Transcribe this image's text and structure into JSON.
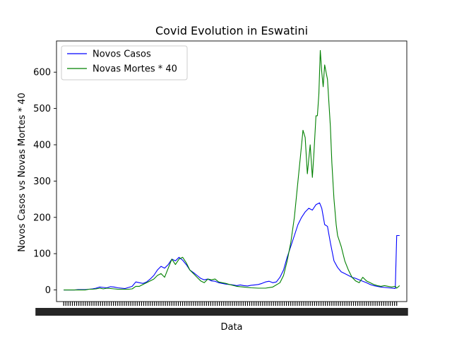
{
  "chart_data": {
    "type": "line",
    "title": "Covid Evolution in Eswatini",
    "xlabel": "Data",
    "ylabel": "Novos Casos vs Novas Mortes * 40",
    "ylim": [
      -32,
      686
    ],
    "yticks": [
      0,
      100,
      200,
      300,
      400,
      500,
      600
    ],
    "x_tick_labels_note": "dense overlapping date labels (illegible)",
    "grid": false,
    "legend_position": "upper-left",
    "colors": {
      "Novos Casos": "#0000ff",
      "Novas Mortes * 40": "#008000"
    },
    "series": [
      {
        "name": "Novos Casos",
        "points": [
          [
            0,
            0
          ],
          [
            5,
            0
          ],
          [
            10,
            0
          ],
          [
            15,
            0
          ],
          [
            20,
            1
          ],
          [
            25,
            1
          ],
          [
            30,
            1
          ],
          [
            35,
            2
          ],
          [
            40,
            3
          ],
          [
            45,
            5
          ],
          [
            50,
            8
          ],
          [
            55,
            7
          ],
          [
            60,
            6
          ],
          [
            65,
            9
          ],
          [
            70,
            8
          ],
          [
            75,
            6
          ],
          [
            80,
            5
          ],
          [
            85,
            4
          ],
          [
            90,
            7
          ],
          [
            95,
            10
          ],
          [
            100,
            22
          ],
          [
            105,
            20
          ],
          [
            110,
            18
          ],
          [
            115,
            22
          ],
          [
            120,
            30
          ],
          [
            125,
            40
          ],
          [
            130,
            55
          ],
          [
            135,
            65
          ],
          [
            140,
            60
          ],
          [
            145,
            70
          ],
          [
            150,
            85
          ],
          [
            155,
            80
          ],
          [
            160,
            90
          ],
          [
            165,
            82
          ],
          [
            170,
            70
          ],
          [
            175,
            55
          ],
          [
            180,
            48
          ],
          [
            185,
            40
          ],
          [
            190,
            32
          ],
          [
            195,
            28
          ],
          [
            200,
            30
          ],
          [
            205,
            25
          ],
          [
            210,
            24
          ],
          [
            215,
            20
          ],
          [
            220,
            18
          ],
          [
            225,
            16
          ],
          [
            230,
            15
          ],
          [
            235,
            14
          ],
          [
            240,
            12
          ],
          [
            245,
            14
          ],
          [
            250,
            12
          ],
          [
            255,
            11
          ],
          [
            260,
            13
          ],
          [
            265,
            14
          ],
          [
            270,
            15
          ],
          [
            275,
            18
          ],
          [
            280,
            22
          ],
          [
            285,
            24
          ],
          [
            290,
            20
          ],
          [
            295,
            22
          ],
          [
            300,
            35
          ],
          [
            305,
            55
          ],
          [
            310,
            90
          ],
          [
            315,
            120
          ],
          [
            320,
            150
          ],
          [
            325,
            180
          ],
          [
            330,
            200
          ],
          [
            335,
            215
          ],
          [
            340,
            225
          ],
          [
            345,
            220
          ],
          [
            350,
            235
          ],
          [
            355,
            240
          ],
          [
            358,
            225
          ],
          [
            362,
            180
          ],
          [
            366,
            175
          ],
          [
            370,
            130
          ],
          [
            375,
            80
          ],
          [
            380,
            62
          ],
          [
            385,
            50
          ],
          [
            390,
            45
          ],
          [
            395,
            40
          ],
          [
            400,
            35
          ],
          [
            405,
            32
          ],
          [
            410,
            28
          ],
          [
            415,
            24
          ],
          [
            420,
            20
          ],
          [
            425,
            15
          ],
          [
            430,
            12
          ],
          [
            435,
            10
          ],
          [
            440,
            8
          ],
          [
            445,
            7
          ],
          [
            450,
            6
          ],
          [
            455,
            5
          ],
          [
            460,
            4
          ],
          [
            462,
            150
          ],
          [
            466,
            150
          ]
        ]
      },
      {
        "name": "Novas Mortes * 40",
        "points": [
          [
            0,
            0
          ],
          [
            10,
            0
          ],
          [
            20,
            0
          ],
          [
            30,
            0
          ],
          [
            35,
            2
          ],
          [
            40,
            2
          ],
          [
            45,
            3
          ],
          [
            50,
            5
          ],
          [
            55,
            3
          ],
          [
            60,
            5
          ],
          [
            65,
            4
          ],
          [
            70,
            3
          ],
          [
            75,
            2
          ],
          [
            80,
            2
          ],
          [
            90,
            2
          ],
          [
            95,
            3
          ],
          [
            100,
            10
          ],
          [
            105,
            10
          ],
          [
            110,
            15
          ],
          [
            115,
            20
          ],
          [
            120,
            25
          ],
          [
            125,
            30
          ],
          [
            130,
            40
          ],
          [
            135,
            45
          ],
          [
            140,
            35
          ],
          [
            145,
            60
          ],
          [
            150,
            85
          ],
          [
            155,
            70
          ],
          [
            160,
            85
          ],
          [
            165,
            90
          ],
          [
            170,
            75
          ],
          [
            175,
            55
          ],
          [
            180,
            45
          ],
          [
            185,
            35
          ],
          [
            190,
            25
          ],
          [
            195,
            20
          ],
          [
            200,
            30
          ],
          [
            205,
            28
          ],
          [
            210,
            30
          ],
          [
            215,
            22
          ],
          [
            220,
            20
          ],
          [
            225,
            18
          ],
          [
            230,
            15
          ],
          [
            240,
            10
          ],
          [
            250,
            8
          ],
          [
            260,
            6
          ],
          [
            270,
            5
          ],
          [
            280,
            5
          ],
          [
            290,
            8
          ],
          [
            300,
            20
          ],
          [
            305,
            40
          ],
          [
            310,
            80
          ],
          [
            315,
            130
          ],
          [
            320,
            200
          ],
          [
            325,
            300
          ],
          [
            328,
            360
          ],
          [
            330,
            400
          ],
          [
            332,
            440
          ],
          [
            335,
            420
          ],
          [
            338,
            320
          ],
          [
            340,
            360
          ],
          [
            342,
            400
          ],
          [
            345,
            310
          ],
          [
            347,
            370
          ],
          [
            350,
            480
          ],
          [
            352,
            480
          ],
          [
            354,
            540
          ],
          [
            356,
            660
          ],
          [
            358,
            600
          ],
          [
            360,
            560
          ],
          [
            362,
            620
          ],
          [
            364,
            600
          ],
          [
            366,
            580
          ],
          [
            370,
            450
          ],
          [
            372,
            350
          ],
          [
            375,
            250
          ],
          [
            378,
            180
          ],
          [
            380,
            150
          ],
          [
            385,
            120
          ],
          [
            390,
            80
          ],
          [
            395,
            55
          ],
          [
            400,
            35
          ],
          [
            405,
            25
          ],
          [
            410,
            20
          ],
          [
            415,
            35
          ],
          [
            420,
            25
          ],
          [
            425,
            20
          ],
          [
            430,
            15
          ],
          [
            435,
            12
          ],
          [
            440,
            10
          ],
          [
            445,
            12
          ],
          [
            450,
            10
          ],
          [
            455,
            8
          ],
          [
            460,
            10
          ],
          [
            462,
            5
          ],
          [
            466,
            12
          ]
        ]
      }
    ]
  }
}
